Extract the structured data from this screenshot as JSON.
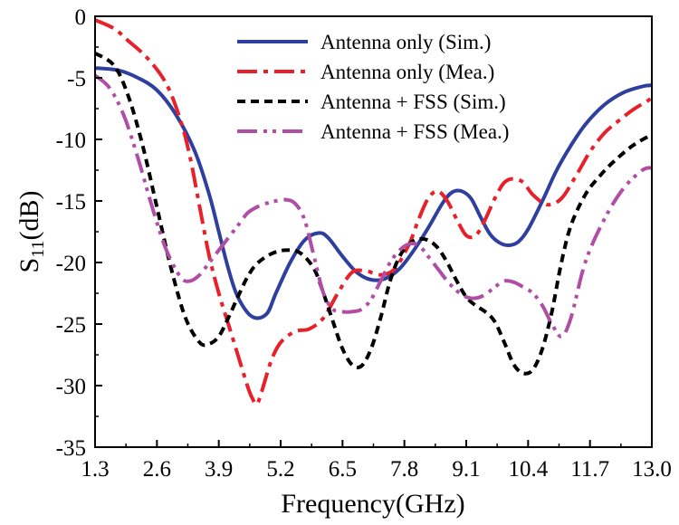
{
  "chart_data": {
    "type": "line",
    "title": "",
    "xlabel": "Frequency(GHz)",
    "ylabel": {
      "prefix": "S",
      "subscript": "11",
      "suffix": "(dB)"
    },
    "xlim": [
      1.3,
      13.0
    ],
    "ylim": [
      -35,
      0
    ],
    "xticks": [
      1.3,
      2.6,
      3.9,
      5.2,
      6.5,
      7.8,
      9.1,
      10.4,
      11.7,
      13.0
    ],
    "xtick_labels": [
      "1.3",
      "2.6",
      "3.9",
      "5.2",
      "6.5",
      "7.8",
      "9.1",
      "10.4",
      "11.7",
      "13.0"
    ],
    "yticks": [
      0,
      -5,
      -10,
      -15,
      -20,
      -25,
      -30,
      -35
    ],
    "ytick_labels": [
      "0",
      "-5",
      "-10",
      "-15",
      "-20",
      "-25",
      "-30",
      "-35"
    ],
    "grid": false,
    "legend_position": "top-right",
    "series": [
      {
        "name": "Antenna only (Sim.)",
        "color": "#2e3f9f",
        "style": "solid",
        "x": [
          1.3,
          1.8,
          2.2,
          2.6,
          3.0,
          3.4,
          3.7,
          3.9,
          4.1,
          4.3,
          4.6,
          4.9,
          5.1,
          5.4,
          5.7,
          6.0,
          6.2,
          6.5,
          6.8,
          7.1,
          7.4,
          7.7,
          8.0,
          8.3,
          8.6,
          8.8,
          9.0,
          9.2,
          9.4,
          9.6,
          9.8,
          10.0,
          10.2,
          10.4,
          10.7,
          11.0,
          11.3,
          11.6,
          12.0,
          12.4,
          12.8,
          13.0
        ],
        "y": [
          -4.2,
          -4.4,
          -5.0,
          -6.0,
          -8.0,
          -11.0,
          -14.5,
          -17.5,
          -20.5,
          -22.8,
          -24.4,
          -24.2,
          -22.5,
          -20.0,
          -18.2,
          -17.6,
          -18.0,
          -19.5,
          -20.8,
          -21.4,
          -21.3,
          -20.5,
          -19.0,
          -17.2,
          -15.2,
          -14.3,
          -14.2,
          -14.8,
          -16.3,
          -17.7,
          -18.4,
          -18.6,
          -18.3,
          -17.3,
          -15.0,
          -12.5,
          -10.5,
          -8.8,
          -7.2,
          -6.2,
          -5.7,
          -5.6
        ]
      },
      {
        "name": "Antenna only (Mea.)",
        "color": "#e8202a",
        "style": "dashdot",
        "x": [
          1.3,
          1.7,
          2.0,
          2.4,
          2.8,
          3.1,
          3.3,
          3.5,
          3.7,
          3.9,
          4.1,
          4.3,
          4.5,
          4.6,
          4.7,
          4.8,
          5.0,
          5.2,
          5.5,
          5.8,
          6.1,
          6.4,
          6.7,
          7.0,
          7.3,
          7.6,
          7.9,
          8.1,
          8.3,
          8.5,
          8.7,
          8.9,
          9.1,
          9.3,
          9.5,
          9.7,
          9.9,
          10.1,
          10.3,
          10.5,
          10.8,
          11.1,
          11.4,
          11.7,
          12.0,
          12.3,
          12.6,
          12.9,
          13.0
        ],
        "y": [
          -0.3,
          -1.0,
          -2.0,
          -3.4,
          -5.5,
          -8.5,
          -11.5,
          -15.5,
          -19.5,
          -22.5,
          -25.0,
          -27.5,
          -30.0,
          -31.0,
          -31.5,
          -30.5,
          -28.0,
          -26.5,
          -25.6,
          -25.4,
          -24.5,
          -22.5,
          -20.8,
          -20.7,
          -21.0,
          -20.5,
          -18.5,
          -16.5,
          -14.8,
          -14.2,
          -15.0,
          -16.5,
          -17.8,
          -17.8,
          -16.5,
          -14.8,
          -13.5,
          -13.2,
          -13.5,
          -14.5,
          -15.3,
          -14.8,
          -13.0,
          -11.0,
          -9.5,
          -8.5,
          -7.6,
          -6.9,
          -6.6
        ]
      },
      {
        "name": "Antenna + FSS (Sim.)",
        "color": "#000000",
        "style": "dashed",
        "x": [
          1.3,
          1.7,
          2.0,
          2.3,
          2.6,
          2.9,
          3.2,
          3.5,
          3.7,
          3.9,
          4.1,
          4.3,
          4.5,
          4.7,
          5.0,
          5.3,
          5.6,
          5.9,
          6.1,
          6.3,
          6.5,
          6.7,
          6.9,
          7.1,
          7.3,
          7.5,
          7.7,
          7.9,
          8.1,
          8.3,
          8.5,
          8.7,
          8.9,
          9.1,
          9.3,
          9.5,
          9.7,
          9.9,
          10.1,
          10.3,
          10.5,
          10.7,
          10.9,
          11.1,
          11.3,
          11.6,
          11.9,
          12.2,
          12.6,
          13.0
        ],
        "y": [
          -3.0,
          -4.0,
          -6.5,
          -10.5,
          -15.5,
          -20.5,
          -24.5,
          -26.5,
          -26.6,
          -26.0,
          -24.5,
          -22.8,
          -21.2,
          -20.1,
          -19.3,
          -19.0,
          -19.2,
          -20.5,
          -22.5,
          -24.8,
          -27.0,
          -28.3,
          -28.4,
          -27.0,
          -24.5,
          -21.5,
          -19.5,
          -18.5,
          -18.1,
          -18.2,
          -18.8,
          -20.0,
          -21.5,
          -22.8,
          -23.5,
          -24.0,
          -24.8,
          -26.5,
          -28.3,
          -29.0,
          -28.7,
          -27.0,
          -24.0,
          -20.0,
          -17.0,
          -14.5,
          -13.0,
          -11.8,
          -10.5,
          -9.6
        ]
      },
      {
        "name": "Antenna + FSS (Mea.)",
        "color": "#b04ea6",
        "style": "dashdotdot",
        "x": [
          1.3,
          1.6,
          1.9,
          2.2,
          2.5,
          2.8,
          3.1,
          3.3,
          3.5,
          3.7,
          3.9,
          4.1,
          4.3,
          4.5,
          4.7,
          4.9,
          5.1,
          5.3,
          5.5,
          5.7,
          5.9,
          6.1,
          6.3,
          6.5,
          6.7,
          6.9,
          7.1,
          7.3,
          7.5,
          7.7,
          7.9,
          8.1,
          8.3,
          8.5,
          8.7,
          8.9,
          9.1,
          9.3,
          9.5,
          9.7,
          9.9,
          10.1,
          10.3,
          10.5,
          10.7,
          10.9,
          11.1,
          11.3,
          11.6,
          12.0,
          12.4,
          12.8,
          13.0
        ],
        "y": [
          -4.8,
          -5.8,
          -8.0,
          -11.5,
          -15.5,
          -19.0,
          -21.2,
          -21.5,
          -21.0,
          -20.0,
          -19.0,
          -18.0,
          -17.0,
          -16.0,
          -15.5,
          -15.2,
          -15.0,
          -14.9,
          -15.2,
          -16.5,
          -19.5,
          -22.5,
          -23.8,
          -24.0,
          -24.0,
          -23.8,
          -23.0,
          -21.5,
          -20.0,
          -19.0,
          -18.5,
          -18.6,
          -19.5,
          -20.5,
          -21.5,
          -22.3,
          -22.8,
          -22.9,
          -22.6,
          -22.0,
          -21.5,
          -21.6,
          -22.0,
          -22.5,
          -23.5,
          -25.0,
          -26.0,
          -24.5,
          -20.0,
          -16.5,
          -14.0,
          -12.5,
          -12.3
        ]
      }
    ]
  }
}
